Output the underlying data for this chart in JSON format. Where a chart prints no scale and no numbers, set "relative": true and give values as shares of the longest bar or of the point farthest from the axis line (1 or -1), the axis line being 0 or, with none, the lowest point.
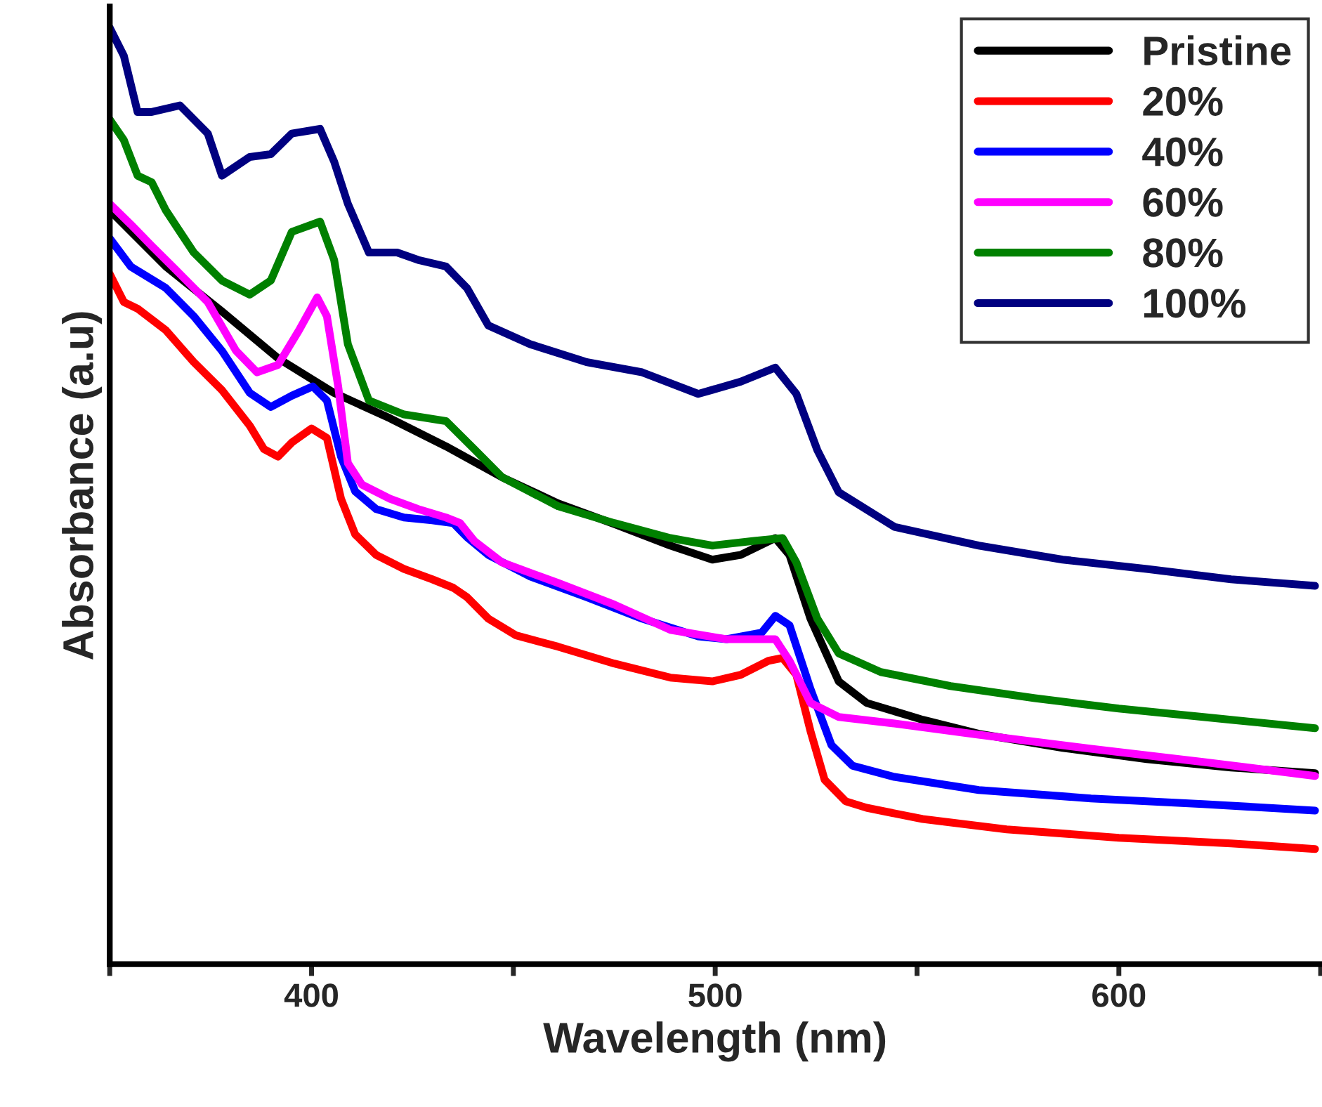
{
  "chart_data": {
    "type": "line",
    "relative": true,
    "xlabel": "Wavelength (nm)",
    "ylabel": "Absorbance (a.u)",
    "xlim": [
      350,
      650
    ],
    "xticks": [
      {
        "value": 350,
        "label": null
      },
      400,
      {
        "value": 450,
        "label": null
      },
      500,
      {
        "value": 550,
        "label": null
      },
      600,
      {
        "value": 650,
        "label": null
      }
    ],
    "grid": false,
    "legend": "top right",
    "marker": "none",
    "line_style": "solid",
    "tick_labels": "x",
    "series": [
      {
        "name": "Pristine",
        "color": "#000000",
        "x": [
          350,
          363.9,
          377.8,
          391.7,
          405.6,
          419.4,
          433.3,
          447.2,
          461.1,
          475,
          488.9,
          499.3,
          506.3,
          514.9,
          518.4,
          523.6,
          530.6,
          537.5,
          551.4,
          565.3,
          586.1,
          606.9,
          627.8,
          648.6
        ],
        "values": [
          0.805,
          0.745,
          0.697,
          0.647,
          0.61,
          0.583,
          0.553,
          0.52,
          0.492,
          0.47,
          0.447,
          0.432,
          0.437,
          0.455,
          0.437,
          0.369,
          0.302,
          0.279,
          0.261,
          0.246,
          0.231,
          0.219,
          0.21,
          0.204
        ]
      },
      {
        "name": "20%",
        "color": "#ff0000",
        "x": [
          350,
          353.5,
          356.9,
          363.9,
          370.8,
          377.8,
          384.7,
          388.2,
          391.7,
          395.1,
          400,
          403.8,
          407.3,
          410.8,
          416,
          422.9,
          429.9,
          435.1,
          438.5,
          443.8,
          450.7,
          461.1,
          475,
          488.9,
          499.3,
          506.3,
          513.2,
          516.7,
          520.1,
          523.6,
          527.1,
          532.3,
          537.5,
          551.4,
          572.2,
          600,
          627.8,
          648.6
        ],
        "values": [
          0.737,
          0.707,
          0.7,
          0.677,
          0.643,
          0.613,
          0.575,
          0.55,
          0.542,
          0.557,
          0.572,
          0.562,
          0.497,
          0.459,
          0.437,
          0.422,
          0.411,
          0.402,
          0.392,
          0.369,
          0.351,
          0.339,
          0.321,
          0.306,
          0.302,
          0.309,
          0.324,
          0.327,
          0.309,
          0.249,
          0.197,
          0.174,
          0.167,
          0.155,
          0.144,
          0.135,
          0.129,
          0.123
        ]
      },
      {
        "name": "40%",
        "color": "#0000ff",
        "x": [
          350,
          355.2,
          363.9,
          370.8,
          377.8,
          384.7,
          389.9,
          395.1,
          400.3,
          403.8,
          407.3,
          410.8,
          416,
          422.9,
          429.9,
          435.1,
          438.5,
          443.8,
          454.2,
          468.1,
          481.9,
          495.8,
          502.8,
          511.5,
          514.9,
          518.4,
          523.6,
          528.8,
          534,
          544.4,
          565.3,
          593.1,
          620.8,
          648.6
        ],
        "values": [
          0.775,
          0.745,
          0.722,
          0.692,
          0.655,
          0.61,
          0.595,
          0.607,
          0.617,
          0.602,
          0.542,
          0.505,
          0.486,
          0.477,
          0.474,
          0.471,
          0.456,
          0.437,
          0.414,
          0.392,
          0.369,
          0.35,
          0.347,
          0.354,
          0.372,
          0.362,
          0.294,
          0.234,
          0.212,
          0.2,
          0.186,
          0.177,
          0.171,
          0.164
        ]
      },
      {
        "name": "60%",
        "color": "#ff00ff",
        "x": [
          350,
          355.2,
          360.4,
          367.4,
          374.3,
          381.3,
          386.5,
          391.7,
          396.9,
          401.4,
          403.8,
          406.6,
          409,
          412.5,
          419.4,
          426.4,
          433.3,
          436.8,
          440.3,
          447.2,
          461.1,
          475,
          488.9,
          502.8,
          514.9,
          518.4,
          523.6,
          530.6,
          544.4,
          565.3,
          593.1,
          620.8,
          648.6
        ],
        "values": [
          0.812,
          0.79,
          0.767,
          0.737,
          0.707,
          0.655,
          0.632,
          0.64,
          0.677,
          0.712,
          0.692,
          0.617,
          0.535,
          0.512,
          0.497,
          0.486,
          0.477,
          0.471,
          0.452,
          0.429,
          0.407,
          0.384,
          0.357,
          0.347,
          0.347,
          0.324,
          0.279,
          0.264,
          0.257,
          0.245,
          0.23,
          0.216,
          0.201
        ]
      },
      {
        "name": "80%",
        "color": "#008000",
        "x": [
          350,
          353.5,
          356.9,
          360.4,
          363.9,
          370.8,
          377.8,
          384.7,
          389.9,
          395.1,
          402.1,
          405.6,
          409,
          414.2,
          422.9,
          433.3,
          440.3,
          447.2,
          461.1,
          475,
          488.9,
          499.3,
          509.7,
          516.7,
          520.1,
          525.3,
          530.6,
          541,
          558.3,
          579.2,
          600,
          627.8,
          648.6
        ],
        "values": [
          0.902,
          0.88,
          0.842,
          0.835,
          0.805,
          0.76,
          0.73,
          0.715,
          0.73,
          0.782,
          0.793,
          0.752,
          0.662,
          0.602,
          0.587,
          0.58,
          0.55,
          0.52,
          0.489,
          0.471,
          0.455,
          0.447,
          0.452,
          0.455,
          0.429,
          0.369,
          0.332,
          0.312,
          0.297,
          0.284,
          0.273,
          0.261,
          0.252
        ]
      },
      {
        "name": "100%",
        "color": "#000080",
        "x": [
          350,
          353.5,
          356.9,
          360.4,
          367.4,
          374.3,
          377.8,
          384.7,
          389.9,
          395.1,
          402.1,
          405.6,
          409,
          414.2,
          421.2,
          426.4,
          433.3,
          438.5,
          443.8,
          454.2,
          468.1,
          481.9,
          495.8,
          506.3,
          514.9,
          520.1,
          525.3,
          530.6,
          544.4,
          565.3,
          586.1,
          606.9,
          627.8,
          648.6
        ],
        "values": [
          1,
          0.97,
          0.91,
          0.91,
          0.917,
          0.887,
          0.842,
          0.862,
          0.865,
          0.887,
          0.892,
          0.857,
          0.812,
          0.76,
          0.76,
          0.752,
          0.745,
          0.722,
          0.682,
          0.662,
          0.643,
          0.632,
          0.609,
          0.622,
          0.637,
          0.609,
          0.549,
          0.504,
          0.467,
          0.447,
          0.432,
          0.422,
          0.411,
          0.404
        ]
      }
    ]
  }
}
